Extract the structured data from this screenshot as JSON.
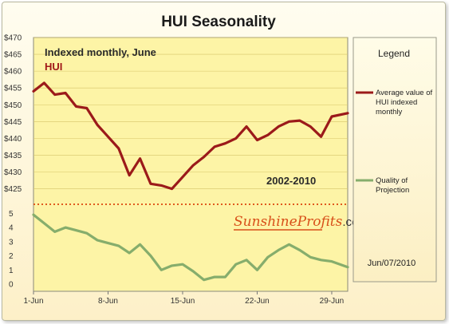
{
  "chart_data": {
    "type": "line",
    "title": "HUI Seasonality",
    "subtitle": "Indexed monthly, June",
    "series_label": "HUI",
    "period": "2002-2010",
    "date": "Jun/07/2010",
    "watermark": "SunshineProfits.com",
    "legend_title": "Legend",
    "legend_placement": "right",
    "x": {
      "tick_labels": [
        "1-Jun",
        "8-Jun",
        "15-Jun",
        "22-Jun",
        "29-Jun"
      ],
      "tick_days": [
        1,
        8,
        15,
        22,
        29
      ],
      "range": [
        1,
        30.5
      ]
    },
    "upper_axis": {
      "tick_labels": [
        "$425",
        "$430",
        "$435",
        "$440",
        "$445",
        "$450",
        "$455",
        "$460",
        "$465",
        "$470"
      ],
      "range": [
        423,
        470
      ]
    },
    "lower_axis": {
      "tick_labels": [
        "0",
        "1",
        "2",
        "3",
        "4",
        "5"
      ],
      "range": [
        0,
        5.3
      ]
    },
    "series": [
      {
        "name": "Average value of HUI indexed monthly",
        "color": "#9b1a1a",
        "axis": "upper",
        "x": [
          1,
          2,
          3,
          4,
          5,
          6,
          7,
          8,
          9,
          10,
          11,
          12,
          13,
          14,
          15,
          16,
          17,
          18,
          19,
          20,
          21,
          22,
          23,
          24,
          25,
          26,
          27,
          28,
          29,
          30.5
        ],
        "y": [
          454,
          456.5,
          453,
          453.5,
          449.5,
          449,
          444,
          440.5,
          437,
          429,
          434,
          426.5,
          426,
          425,
          428.5,
          432,
          434.5,
          437.5,
          438.5,
          440,
          443.5,
          439.5,
          441,
          443.5,
          445,
          445.3,
          443.5,
          440.5,
          446.5,
          447.5
        ]
      },
      {
        "name": "Quality of Projection",
        "color": "#86ad6c",
        "axis": "lower",
        "x": [
          1,
          2,
          3,
          4,
          5,
          6,
          7,
          8,
          9,
          10,
          11,
          12,
          13,
          14,
          15,
          16,
          17,
          18,
          19,
          20,
          21,
          22,
          23,
          24,
          25,
          26,
          27,
          28,
          29,
          30.5
        ],
        "y": [
          4.9,
          4.3,
          3.7,
          4.0,
          3.8,
          3.6,
          3.1,
          2.9,
          2.7,
          2.2,
          2.8,
          2.0,
          1.0,
          1.3,
          1.4,
          0.9,
          0.3,
          0.5,
          0.5,
          1.4,
          1.7,
          1.0,
          1.9,
          2.4,
          2.8,
          2.4,
          1.9,
          1.7,
          1.6,
          1.2
        ]
      }
    ],
    "grid": "horizontal",
    "colors": {
      "plot_bg": "#fdf4a6",
      "divider": "#e05a1e",
      "grid": "#d6c468"
    }
  }
}
